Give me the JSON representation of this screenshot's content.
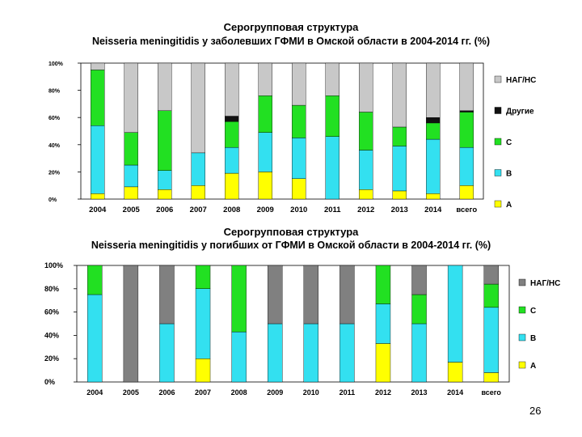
{
  "page": {
    "number": "26"
  },
  "chart_data": [
    {
      "type": "bar",
      "stacked": true,
      "title": "Серогрупповая структура",
      "subtitle": "Neisseria meningitidis  у заболевших ГФМИ в Омской области в 2004-2014 гг. (%)",
      "categories": [
        "2004",
        "2005",
        "2006",
        "2007",
        "2008",
        "2009",
        "2010",
        "2011",
        "2012",
        "2013",
        "2014",
        "всего"
      ],
      "ylim": [
        0,
        100
      ],
      "yticks": [
        "0%",
        "20%",
        "40%",
        "60%",
        "80%",
        "100%"
      ],
      "legend_position": "right",
      "series": [
        {
          "name": "A",
          "color": "#ffff00",
          "values": [
            4,
            9,
            7,
            10,
            19,
            20,
            15,
            0,
            7,
            6,
            4,
            10
          ]
        },
        {
          "name": "B",
          "color": "#33e0f0",
          "values": [
            50,
            16,
            14,
            24,
            19,
            29,
            30,
            46,
            29,
            33,
            40,
            28
          ]
        },
        {
          "name": "C",
          "color": "#22e022",
          "values": [
            41,
            24,
            44,
            0,
            19,
            27,
            24,
            30,
            28,
            14,
            12,
            26
          ]
        },
        {
          "name": "Другие",
          "color": "#111111",
          "values": [
            0,
            0,
            0,
            0,
            4,
            0,
            0,
            0,
            0,
            0,
            4,
            1
          ]
        },
        {
          "name": "НАГ/НС",
          "color": "#c8c8c8",
          "values": [
            5,
            51,
            35,
            66,
            39,
            24,
            31,
            24,
            36,
            47,
            40,
            35
          ]
        }
      ]
    },
    {
      "type": "bar",
      "stacked": true,
      "title": "Серогрупповая структура",
      "subtitle": "Neisseria meningitidis  у погибших от ГФМИ в Омской области в 2004-2014 гг. (%)",
      "categories": [
        "2004",
        "2005",
        "2006",
        "2007",
        "2008",
        "2009",
        "2010",
        "2011",
        "2012",
        "2013",
        "2014",
        "всего"
      ],
      "ylim": [
        0,
        100
      ],
      "yticks": [
        "0%",
        "20%",
        "40%",
        "60%",
        "80%",
        "100%"
      ],
      "legend_position": "right",
      "series": [
        {
          "name": "A",
          "color": "#ffff00",
          "values": [
            0,
            0,
            0,
            20,
            0,
            0,
            0,
            0,
            33,
            0,
            17,
            8
          ]
        },
        {
          "name": "B",
          "color": "#33e0f0",
          "values": [
            75,
            0,
            50,
            60,
            43,
            50,
            50,
            50,
            34,
            50,
            83,
            56
          ]
        },
        {
          "name": "C",
          "color": "#22e022",
          "values": [
            25,
            0,
            0,
            20,
            57,
            0,
            0,
            0,
            33,
            25,
            0,
            20
          ]
        },
        {
          "name": "НАГ/НС",
          "color": "#808080",
          "values": [
            0,
            100,
            50,
            0,
            0,
            50,
            50,
            50,
            0,
            25,
            0,
            16
          ]
        }
      ]
    }
  ]
}
